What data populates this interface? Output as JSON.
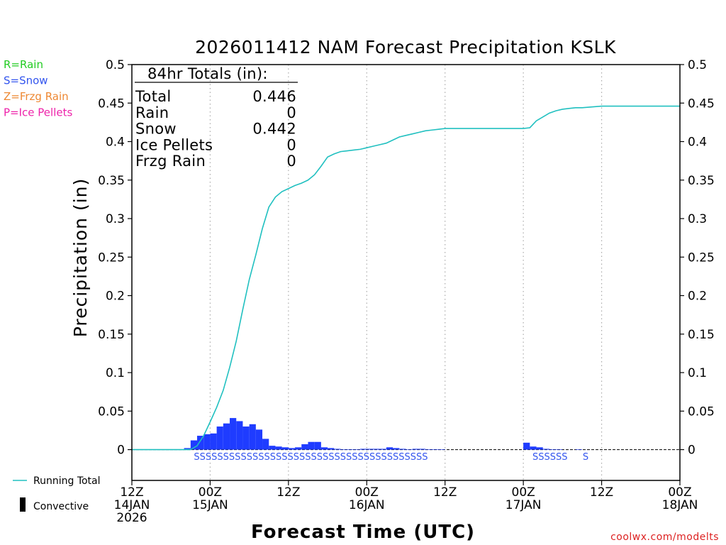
{
  "chart_data": {
    "type": "bar",
    "title": "2026011412 NAM Forecast Precipitation KSLK",
    "xlabel": "Forecast Time (UTC)",
    "ylabel": "Precipitation (in)",
    "ylim": [
      -0.04,
      0.5
    ],
    "yticks": [
      0,
      0.05,
      0.1,
      0.15,
      0.2,
      0.25,
      0.3,
      0.35,
      0.4,
      0.45,
      0.5
    ],
    "ytick_labels": [
      "0",
      "0.05",
      "0.1",
      "0.15",
      "0.2",
      "0.25",
      "0.3",
      "0.35",
      "0.4",
      "0.45",
      "0.5"
    ],
    "xlim_hours": [
      0,
      84
    ],
    "xticks": [
      {
        "hour": 0,
        "lines": [
          "12Z",
          "14JAN",
          "2026"
        ]
      },
      {
        "hour": 12,
        "lines": [
          "00Z",
          "15JAN"
        ]
      },
      {
        "hour": 24,
        "lines": [
          "12Z"
        ]
      },
      {
        "hour": 36,
        "lines": [
          "00Z",
          "16JAN"
        ]
      },
      {
        "hour": 48,
        "lines": [
          "12Z"
        ]
      },
      {
        "hour": 60,
        "lines": [
          "00Z",
          "17JAN"
        ]
      },
      {
        "hour": 72,
        "lines": [
          "12Z"
        ]
      },
      {
        "hour": 84,
        "lines": [
          "00Z",
          "18JAN"
        ]
      }
    ],
    "bar_hours": [
      9,
      10,
      11,
      12,
      13,
      14,
      15,
      16,
      17,
      18,
      19,
      20,
      21,
      22,
      23,
      24,
      25,
      26,
      27,
      28,
      29,
      30,
      31,
      32,
      33,
      34,
      35,
      36,
      37,
      38,
      39,
      40,
      41,
      42,
      43,
      44,
      45,
      46,
      47,
      48,
      61,
      62,
      63,
      64,
      65,
      66,
      69
    ],
    "series": [
      {
        "name": "Snow",
        "color": "#1f3cff",
        "values": [
          0.002,
          0.012,
          0.018,
          0.02,
          0.021,
          0.03,
          0.034,
          0.041,
          0.037,
          0.03,
          0.033,
          0.026,
          0.014,
          0.005,
          0.004,
          0.003,
          0.002,
          0.003,
          0.007,
          0.01,
          0.01,
          0.003,
          0.002,
          0.001,
          0.0005,
          0.0005,
          0.0005,
          0.001,
          0.001,
          0.001,
          0.001,
          0.003,
          0.002,
          0.001,
          0.0005,
          0.001,
          0.001,
          0.0005,
          0.0005,
          0.0003,
          0.009,
          0.004,
          0.003,
          0.001,
          0.0005,
          0.0005,
          0.0003
        ]
      },
      {
        "name": "Running Total",
        "color": "#20c0c0",
        "x_hours": [
          0,
          9,
          10,
          11,
          12,
          13,
          14,
          15,
          16,
          17,
          18,
          19,
          20,
          21,
          22,
          23,
          24,
          25,
          26,
          27,
          28,
          29,
          30,
          31,
          32,
          33,
          34,
          35,
          36,
          37,
          38,
          39,
          40,
          41,
          42,
          43,
          44,
          45,
          46,
          47,
          48,
          52,
          56,
          60,
          61,
          62,
          63,
          64,
          65,
          66,
          67,
          68,
          69,
          72,
          76,
          84
        ],
        "values": [
          0,
          0,
          0.005,
          0.018,
          0.036,
          0.055,
          0.077,
          0.107,
          0.141,
          0.182,
          0.221,
          0.253,
          0.287,
          0.315,
          0.328,
          0.335,
          0.339,
          0.343,
          0.346,
          0.35,
          0.357,
          0.368,
          0.38,
          0.384,
          0.387,
          0.388,
          0.389,
          0.39,
          0.392,
          0.394,
          0.396,
          0.398,
          0.402,
          0.406,
          0.408,
          0.41,
          0.412,
          0.414,
          0.415,
          0.416,
          0.417,
          0.417,
          0.417,
          0.417,
          0.418,
          0.427,
          0.432,
          0.437,
          0.44,
          0.442,
          0.443,
          0.444,
          0.444,
          0.446,
          0.446,
          0.446
        ]
      }
    ],
    "ptype_labels": [
      {
        "hour": 9.5,
        "text": "SSSSSSSSSSSSSSSSSSSSSSSSSSSSSSSSSSSSSSSS"
      },
      {
        "hour": 61.4,
        "text": "SSSSSS"
      },
      {
        "hour": 69.1,
        "text": "S"
      }
    ],
    "type_legend": [
      {
        "text": "R=Rain",
        "color": "#22cc22"
      },
      {
        "text": "S=Snow",
        "color": "#3355ee"
      },
      {
        "text": "Z=Frzg Rain",
        "color": "#ee8833"
      },
      {
        "text": "P=Ice Pellets",
        "color": "#ee22aa"
      }
    ],
    "series_legend": [
      {
        "text": "Running Total",
        "color": "#20c0c0",
        "kind": "line"
      },
      {
        "text": "Convective",
        "color": "#000000",
        "kind": "bar"
      }
    ],
    "totals_box": {
      "heading": "84hr Totals (in):",
      "rows": [
        {
          "label": "Total",
          "value": "0.446"
        },
        {
          "label": "Rain",
          "value": "0"
        },
        {
          "label": "Snow",
          "value": "0.442"
        },
        {
          "label": "Ice Pellets",
          "value": "0"
        },
        {
          "label": "Frzg Rain",
          "value": "0"
        }
      ]
    },
    "credit": "coolwx.com/modelts",
    "credit_color": "#dd2222"
  }
}
